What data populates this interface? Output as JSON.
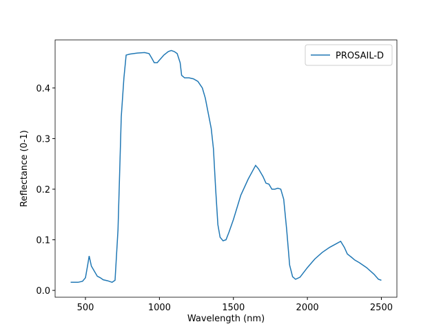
{
  "chart_data": {
    "type": "line",
    "xlabel": "Wavelength (nm)",
    "ylabel": "Reflectance (0-1)",
    "x": [
      400,
      450,
      480,
      500,
      515,
      525,
      540,
      560,
      580,
      600,
      620,
      650,
      680,
      700,
      720,
      742,
      760,
      775,
      800,
      850,
      900,
      930,
      950,
      965,
      985,
      1000,
      1030,
      1060,
      1080,
      1100,
      1120,
      1140,
      1150,
      1170,
      1200,
      1230,
      1260,
      1290,
      1310,
      1330,
      1350,
      1365,
      1380,
      1395,
      1410,
      1430,
      1450,
      1470,
      1500,
      1550,
      1600,
      1650,
      1670,
      1700,
      1720,
      1740,
      1760,
      1780,
      1800,
      1820,
      1840,
      1860,
      1880,
      1900,
      1920,
      1950,
      2000,
      2050,
      2100,
      2150,
      2200,
      2225,
      2250,
      2270,
      2300,
      2320,
      2350,
      2400,
      2450,
      2480,
      2500
    ],
    "series": [
      {
        "name": "PROSAIL-D",
        "color": "#1f77b4",
        "values": [
          0.016,
          0.016,
          0.018,
          0.025,
          0.05,
          0.068,
          0.048,
          0.038,
          0.028,
          0.025,
          0.021,
          0.019,
          0.016,
          0.02,
          0.12,
          0.343,
          0.42,
          0.465,
          0.467,
          0.469,
          0.47,
          0.468,
          0.458,
          0.45,
          0.45,
          0.455,
          0.465,
          0.472,
          0.474,
          0.472,
          0.468,
          0.45,
          0.425,
          0.42,
          0.42,
          0.418,
          0.413,
          0.4,
          0.38,
          0.35,
          0.32,
          0.28,
          0.2,
          0.13,
          0.105,
          0.098,
          0.1,
          0.115,
          0.14,
          0.188,
          0.22,
          0.247,
          0.24,
          0.225,
          0.212,
          0.21,
          0.2,
          0.2,
          0.202,
          0.2,
          0.18,
          0.12,
          0.05,
          0.027,
          0.022,
          0.026,
          0.045,
          0.062,
          0.075,
          0.085,
          0.093,
          0.097,
          0.085,
          0.072,
          0.065,
          0.06,
          0.055,
          0.045,
          0.032,
          0.022,
          0.02
        ]
      }
    ],
    "xlim": [
      295,
      2605
    ],
    "xticks": [
      500,
      1000,
      1500,
      2000,
      2500
    ],
    "ylim": [
      -0.0135,
      0.495
    ],
    "yticks": [
      {
        "value": 0,
        "label": "0.0"
      },
      0.1,
      0.2,
      0.3,
      0.4
    ],
    "legend": "upper right",
    "grid": false
  }
}
